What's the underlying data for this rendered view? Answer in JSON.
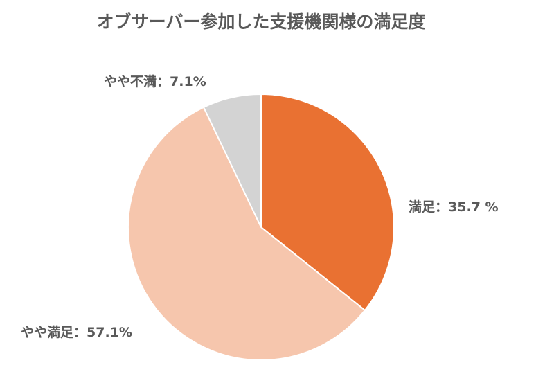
{
  "chart_data": {
    "type": "pie",
    "title": "オブサーバー参加した支援機関様の満足度",
    "categories": [
      "満足",
      "やや満足",
      "やや不満"
    ],
    "values": [
      35.7,
      57.1,
      7.1
    ],
    "value_labels": [
      "35.7 %",
      "57.1%",
      "7.1%"
    ],
    "label_separator": "：",
    "colors": [
      "#E97132",
      "#F6C6AD",
      "#D3D3D3"
    ]
  }
}
